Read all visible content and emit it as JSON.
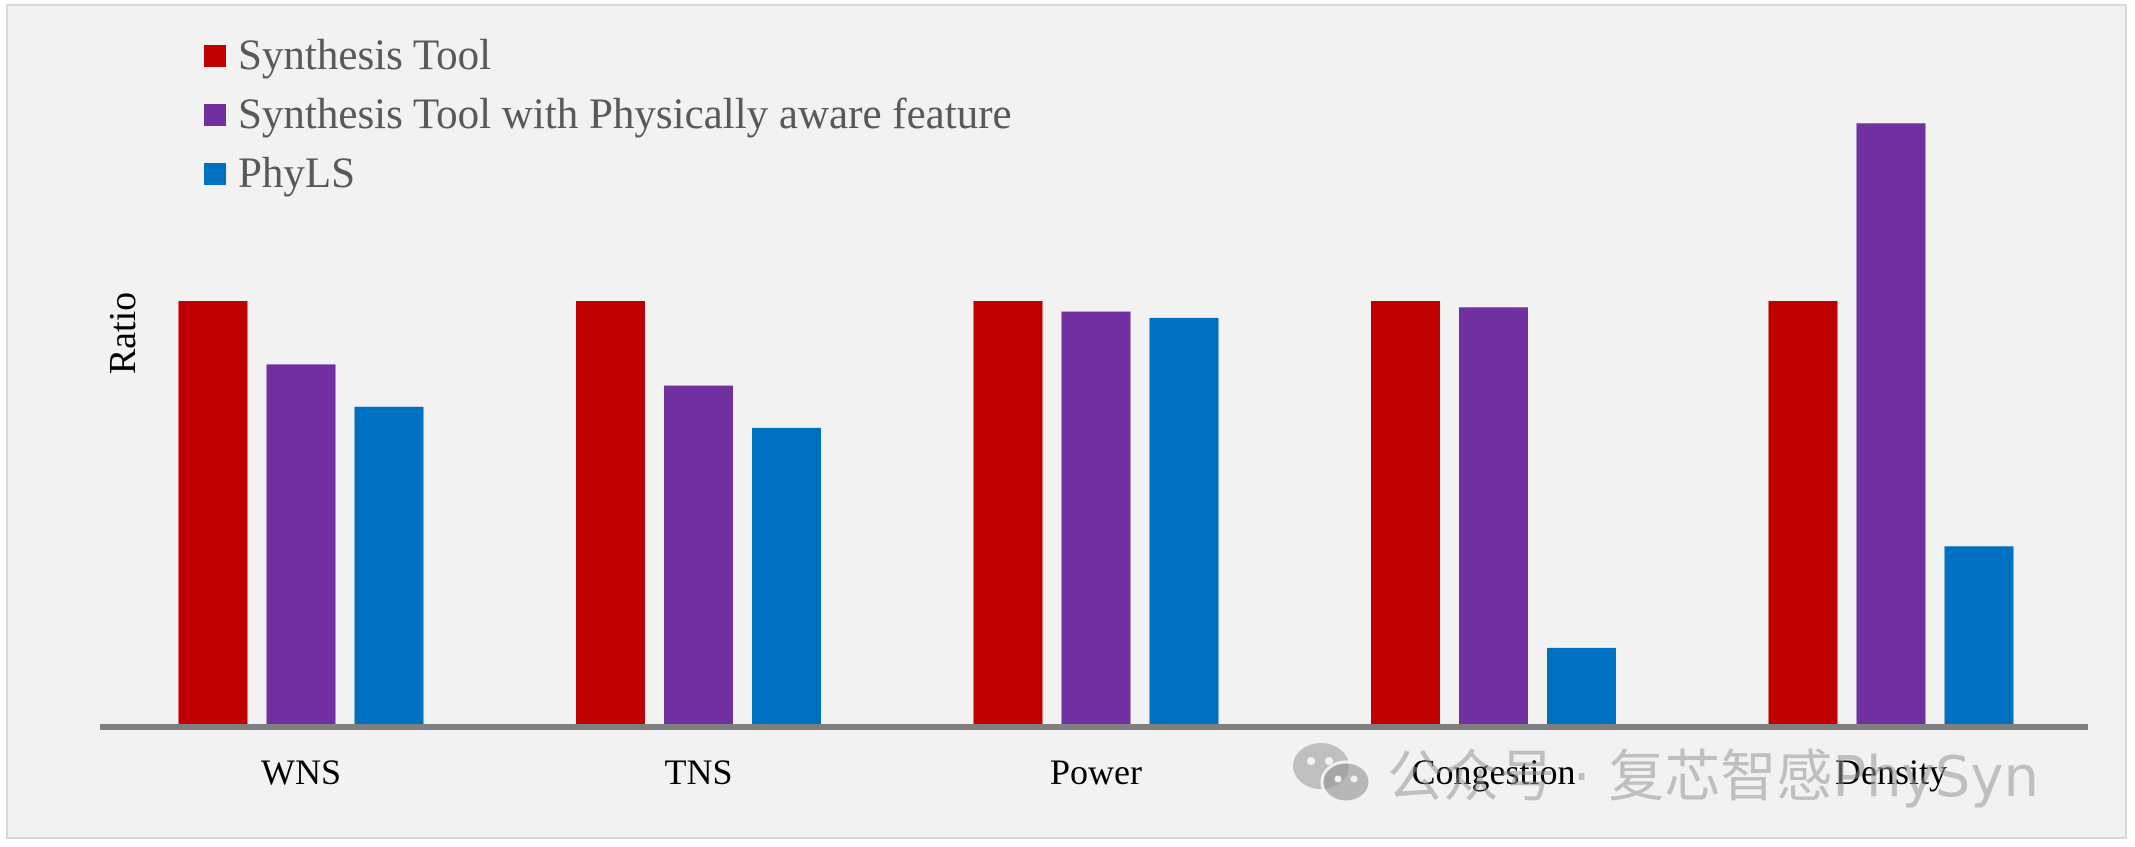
{
  "chart_data": {
    "type": "bar",
    "categories": [
      "WNS",
      "TNS",
      "Power",
      "Congestion",
      "Density"
    ],
    "series": [
      {
        "name": "Synthesis Tool",
        "color": "#c00000",
        "values": [
          1.0,
          1.0,
          1.0,
          1.0,
          1.0
        ]
      },
      {
        "name": "Synthesis Tool with Physically aware feature",
        "color": "#7030a0",
        "values": [
          0.85,
          0.8,
          0.975,
          0.985,
          1.42
        ]
      },
      {
        "name": "PhyLS",
        "color": "#0070c0",
        "values": [
          0.75,
          0.7,
          0.96,
          0.18,
          0.42
        ]
      }
    ],
    "title": "",
    "xlabel": "",
    "ylabel": "Ratio",
    "ylim": [
      0,
      1.55
    ],
    "grid": false,
    "legend": "top-left"
  },
  "watermark": {
    "icon": "wechat-icon",
    "text": "公众号 · 复芯智感PhySyn"
  }
}
